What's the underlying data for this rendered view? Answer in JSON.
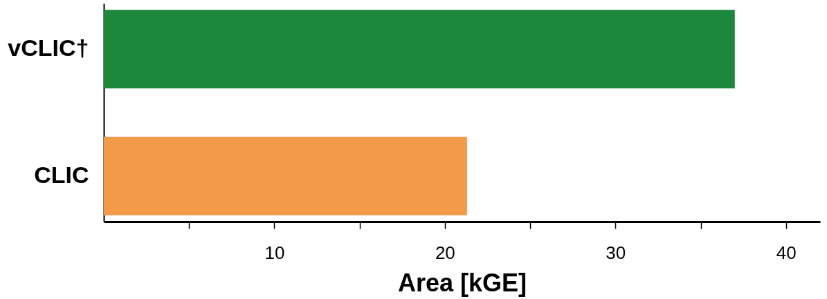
{
  "chart_data": {
    "type": "bar",
    "orientation": "horizontal",
    "categories": [
      "vCLIC†",
      "CLIC"
    ],
    "values": [
      37.0,
      21.3
    ],
    "colors": [
      "#1b883c",
      "#f29a48"
    ],
    "xlim": [
      0,
      42
    ],
    "xticks": [
      {
        "value": 5,
        "label": null
      },
      10,
      {
        "value": 15,
        "label": null
      },
      20,
      {
        "value": 25,
        "label": null
      },
      30,
      {
        "value": 35,
        "label": null
      },
      40
    ],
    "xlabel": "Area [kGE]",
    "grid": false
  }
}
